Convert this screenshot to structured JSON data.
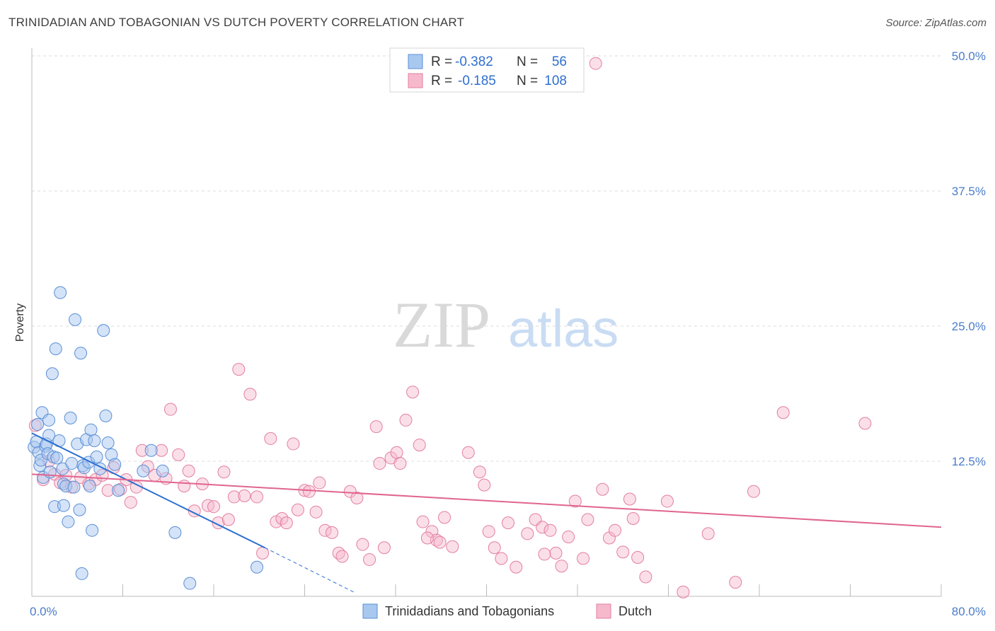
{
  "header": {
    "title": "TRINIDADIAN AND TOBAGONIAN VS DUTCH POVERTY CORRELATION CHART",
    "source": "Source: ZipAtlas.com"
  },
  "watermark": {
    "zip": "ZIP",
    "atlas": "atlas"
  },
  "colors": {
    "blue_fill": "#a9c8ef",
    "blue_stroke": "#5b8fd6",
    "blue_line": "#2b6fd1",
    "pink_fill": "#f6b9cc",
    "pink_stroke": "#e27fa0",
    "pink_line": "#e0658f",
    "tick_blue": "#4a7cc9",
    "grid": "#dddddd"
  },
  "legend": {
    "rows": [
      {
        "r_label": "R =",
        "r_value": "-0.382",
        "n_label": "N =",
        "n_value": "56"
      },
      {
        "r_label": "R =",
        "r_value": "-0.185",
        "n_label": "N =",
        "n_value": "108"
      }
    ]
  },
  "chart_data": {
    "type": "scatter",
    "xlabel": "",
    "ylabel": "Poverty",
    "xlim": [
      0,
      80
    ],
    "ylim": [
      0,
      50
    ],
    "x_tick_labels": [
      "0.0%",
      "80.0%"
    ],
    "y_ticks": [
      12.5,
      25.0,
      37.5,
      50.0
    ],
    "y_tick_labels": [
      "12.5%",
      "25.0%",
      "37.5%",
      "50.0%"
    ],
    "grid": true,
    "legend_position": "top-center",
    "series": [
      {
        "name": "Trinidadians and Tobagonians",
        "color": "#a9c8ef",
        "trend": {
          "x": [
            0,
            20.5
          ],
          "y": [
            15.1,
            4.5
          ],
          "dashed_to": [
            28.5,
            0.3
          ]
        },
        "points": [
          [
            0.2,
            13.8
          ],
          [
            0.4,
            14.3
          ],
          [
            0.5,
            15.9
          ],
          [
            0.6,
            13.3
          ],
          [
            0.7,
            12.1
          ],
          [
            0.8,
            12.6
          ],
          [
            0.9,
            17.0
          ],
          [
            1.0,
            11.0
          ],
          [
            1.2,
            13.9
          ],
          [
            1.3,
            14.1
          ],
          [
            1.4,
            13.2
          ],
          [
            1.5,
            16.3
          ],
          [
            1.5,
            14.9
          ],
          [
            1.6,
            11.5
          ],
          [
            1.8,
            20.6
          ],
          [
            1.9,
            12.9
          ],
          [
            2.0,
            8.3
          ],
          [
            2.1,
            22.9
          ],
          [
            2.2,
            12.8
          ],
          [
            2.4,
            14.4
          ],
          [
            2.5,
            28.1
          ],
          [
            2.7,
            11.8
          ],
          [
            2.8,
            10.4
          ],
          [
            2.8,
            8.4
          ],
          [
            3.0,
            10.2
          ],
          [
            3.2,
            6.9
          ],
          [
            3.4,
            16.5
          ],
          [
            3.5,
            12.3
          ],
          [
            3.7,
            10.1
          ],
          [
            3.8,
            25.6
          ],
          [
            4.0,
            14.1
          ],
          [
            4.2,
            8.0
          ],
          [
            4.3,
            22.5
          ],
          [
            4.4,
            2.1
          ],
          [
            4.5,
            12.1
          ],
          [
            4.6,
            11.9
          ],
          [
            4.8,
            14.5
          ],
          [
            5.0,
            12.4
          ],
          [
            5.1,
            10.2
          ],
          [
            5.2,
            15.4
          ],
          [
            5.3,
            6.1
          ],
          [
            5.5,
            14.4
          ],
          [
            5.7,
            12.9
          ],
          [
            6.0,
            11.8
          ],
          [
            6.3,
            24.6
          ],
          [
            6.5,
            16.7
          ],
          [
            6.7,
            14.2
          ],
          [
            7.0,
            13.1
          ],
          [
            7.3,
            12.2
          ],
          [
            7.6,
            9.8
          ],
          [
            9.8,
            11.6
          ],
          [
            10.5,
            13.5
          ],
          [
            11.5,
            11.6
          ],
          [
            12.6,
            5.9
          ],
          [
            13.9,
            1.2
          ],
          [
            19.8,
            2.7
          ]
        ]
      },
      {
        "name": "Dutch",
        "color": "#f6b9cc",
        "trend": {
          "x": [
            0,
            80
          ],
          "y": [
            11.3,
            6.4
          ]
        },
        "points": [
          [
            0.3,
            15.8
          ],
          [
            1.0,
            10.8
          ],
          [
            1.5,
            12.5
          ],
          [
            2.0,
            11.3
          ],
          [
            2.5,
            10.5
          ],
          [
            3.0,
            11.2
          ],
          [
            3.5,
            10.1
          ],
          [
            4.3,
            11.0
          ],
          [
            5.0,
            10.4
          ],
          [
            5.6,
            10.8
          ],
          [
            6.2,
            11.2
          ],
          [
            6.7,
            9.8
          ],
          [
            7.2,
            11.9
          ],
          [
            7.8,
            9.9
          ],
          [
            8.3,
            10.8
          ],
          [
            8.7,
            8.7
          ],
          [
            9.2,
            10.1
          ],
          [
            9.7,
            13.5
          ],
          [
            10.2,
            12.0
          ],
          [
            10.8,
            11.2
          ],
          [
            11.4,
            13.5
          ],
          [
            11.8,
            10.9
          ],
          [
            12.2,
            17.3
          ],
          [
            12.9,
            13.1
          ],
          [
            13.4,
            10.2
          ],
          [
            13.8,
            11.6
          ],
          [
            14.3,
            7.9
          ],
          [
            15.0,
            10.4
          ],
          [
            15.5,
            8.4
          ],
          [
            16.0,
            8.3
          ],
          [
            16.4,
            6.8
          ],
          [
            16.9,
            11.5
          ],
          [
            17.3,
            7.1
          ],
          [
            17.8,
            9.2
          ],
          [
            18.2,
            21.0
          ],
          [
            18.7,
            9.3
          ],
          [
            19.2,
            18.7
          ],
          [
            19.8,
            9.2
          ],
          [
            20.3,
            4.0
          ],
          [
            21.0,
            14.6
          ],
          [
            21.5,
            6.9
          ],
          [
            22.0,
            7.2
          ],
          [
            22.4,
            6.8
          ],
          [
            23.0,
            14.1
          ],
          [
            23.4,
            8.0
          ],
          [
            24.0,
            9.8
          ],
          [
            24.4,
            9.7
          ],
          [
            25.0,
            7.8
          ],
          [
            25.3,
            10.5
          ],
          [
            25.8,
            6.1
          ],
          [
            26.4,
            5.9
          ],
          [
            27.0,
            4.0
          ],
          [
            27.3,
            3.7
          ],
          [
            28.0,
            9.7
          ],
          [
            28.6,
            9.1
          ],
          [
            29.1,
            4.8
          ],
          [
            29.7,
            3.4
          ],
          [
            30.3,
            15.7
          ],
          [
            30.6,
            12.3
          ],
          [
            31.0,
            4.5
          ],
          [
            31.6,
            12.8
          ],
          [
            32.1,
            13.3
          ],
          [
            32.4,
            12.3
          ],
          [
            32.9,
            16.3
          ],
          [
            33.5,
            18.9
          ],
          [
            34.1,
            14.0
          ],
          [
            34.4,
            6.9
          ],
          [
            35.2,
            6.0
          ],
          [
            35.6,
            5.2
          ],
          [
            35.9,
            5.0
          ],
          [
            36.3,
            7.3
          ],
          [
            37.0,
            4.6
          ],
          [
            38.4,
            13.3
          ],
          [
            39.4,
            11.5
          ],
          [
            39.8,
            10.3
          ],
          [
            40.2,
            6.0
          ],
          [
            40.7,
            4.5
          ],
          [
            41.3,
            3.5
          ],
          [
            41.9,
            6.8
          ],
          [
            42.6,
            2.7
          ],
          [
            43.6,
            5.8
          ],
          [
            44.3,
            7.1
          ],
          [
            44.9,
            6.4
          ],
          [
            45.6,
            6.1
          ],
          [
            46.1,
            4.0
          ],
          [
            46.6,
            2.8
          ],
          [
            47.2,
            5.5
          ],
          [
            47.8,
            8.8
          ],
          [
            48.5,
            3.5
          ],
          [
            48.9,
            7.1
          ],
          [
            49.6,
            49.3
          ],
          [
            50.2,
            9.9
          ],
          [
            50.8,
            5.4
          ],
          [
            51.3,
            6.1
          ],
          [
            52.0,
            4.1
          ],
          [
            52.6,
            9.0
          ],
          [
            52.9,
            7.2
          ],
          [
            53.3,
            3.6
          ],
          [
            54.0,
            1.8
          ],
          [
            55.9,
            8.8
          ],
          [
            57.3,
            0.4
          ],
          [
            61.9,
            1.3
          ],
          [
            63.5,
            9.7
          ],
          [
            66.1,
            17.0
          ],
          [
            73.3,
            16.0
          ],
          [
            34.8,
            5.4
          ],
          [
            45.1,
            3.9
          ],
          [
            59.5,
            5.8
          ]
        ]
      }
    ]
  },
  "bottom_legend": {
    "items": [
      {
        "label": "Trinidadians and Tobagonians"
      },
      {
        "label": "Dutch"
      }
    ]
  }
}
